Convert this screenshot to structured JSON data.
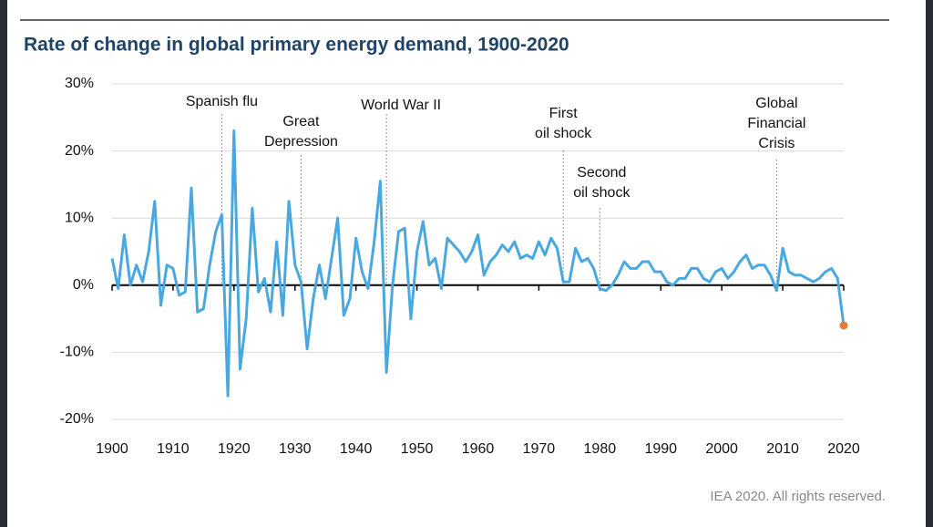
{
  "chart_data": {
    "type": "line",
    "title": "Rate of change in global primary energy demand, 1900-2020",
    "source": "IEA 2020. All rights reserved.",
    "x": [
      1900,
      1901,
      1902,
      1903,
      1904,
      1905,
      1906,
      1907,
      1908,
      1909,
      1910,
      1911,
      1912,
      1913,
      1914,
      1915,
      1916,
      1917,
      1918,
      1919,
      1920,
      1921,
      1922,
      1923,
      1924,
      1925,
      1926,
      1927,
      1928,
      1929,
      1930,
      1931,
      1932,
      1933,
      1934,
      1935,
      1936,
      1937,
      1938,
      1939,
      1940,
      1941,
      1942,
      1943,
      1944,
      1945,
      1946,
      1947,
      1948,
      1949,
      1950,
      1951,
      1952,
      1953,
      1954,
      1955,
      1956,
      1957,
      1958,
      1959,
      1960,
      1961,
      1962,
      1963,
      1964,
      1965,
      1966,
      1967,
      1968,
      1969,
      1970,
      1971,
      1972,
      1973,
      1974,
      1975,
      1976,
      1977,
      1978,
      1979,
      1980,
      1981,
      1982,
      1983,
      1984,
      1985,
      1986,
      1987,
      1988,
      1989,
      1990,
      1991,
      1992,
      1993,
      1994,
      1995,
      1996,
      1997,
      1998,
      1999,
      2000,
      2001,
      2002,
      2003,
      2004,
      2005,
      2006,
      2007,
      2008,
      2009,
      2010,
      2011,
      2012,
      2013,
      2014,
      2015,
      2016,
      2017,
      2018,
      2019,
      2020
    ],
    "series": [
      {
        "name": "Rate of change",
        "color": "#4aa8e0",
        "highlight_color": "#e07b39",
        "values": [
          4,
          -0.5,
          7.5,
          0,
          3,
          0.5,
          5,
          12.5,
          -3,
          3,
          2.5,
          -1.5,
          -1,
          14.5,
          -4,
          -3.5,
          3,
          8,
          10.5,
          -16.5,
          23,
          -12.5,
          -5,
          11.5,
          -1,
          1,
          -4,
          6.5,
          -4.5,
          12.5,
          3,
          0.5,
          -9.5,
          -2,
          3,
          -2,
          4,
          10,
          -4.5,
          -2,
          7,
          2,
          -0.5,
          6.5,
          15.5,
          -13,
          0,
          8,
          8.5,
          -5,
          5,
          9.5,
          3,
          4,
          -0.5,
          7,
          6,
          5,
          3.5,
          5,
          7.5,
          1.5,
          3.5,
          4.5,
          6,
          5,
          6.5,
          4,
          4.5,
          4,
          6.5,
          4.5,
          7,
          5.5,
          0.5,
          0.5,
          5.5,
          3.5,
          4,
          2.5,
          -0.5,
          -0.8,
          0,
          1.5,
          3.5,
          2.5,
          2.5,
          3.5,
          3.5,
          2,
          2,
          0.5,
          0,
          1,
          1,
          2.5,
          2.5,
          1,
          0.5,
          2,
          2.5,
          1,
          2,
          3.5,
          4.5,
          2.5,
          3,
          3,
          1.5,
          -0.8,
          5.5,
          2,
          1.5,
          1.5,
          1,
          0.5,
          1,
          2,
          2.5,
          1,
          -6
        ]
      }
    ],
    "annotations": [
      {
        "x": 1918,
        "lines": [
          "Spanish flu"
        ]
      },
      {
        "x": 1931,
        "lines": [
          "Great",
          "Depression"
        ]
      },
      {
        "x": 1945,
        "lines": [
          "World War II"
        ]
      },
      {
        "x": 1974,
        "lines": [
          "First",
          "oil shock"
        ]
      },
      {
        "x": 1980,
        "lines": [
          "Second",
          "oil shock"
        ]
      },
      {
        "x": 2009,
        "lines": [
          "Global",
          "Financial",
          "Crisis"
        ]
      }
    ],
    "xlim": [
      1900,
      2020
    ],
    "xticks": [
      1900,
      1910,
      1920,
      1930,
      1940,
      1950,
      1960,
      1970,
      1980,
      1990,
      2000,
      2010,
      2020
    ],
    "ylim": [
      -20,
      30
    ],
    "yticks": [
      {
        "value": -20,
        "label": "-20%"
      },
      {
        "value": -10,
        "label": "-10%"
      },
      {
        "value": 0,
        "label": "0%"
      },
      {
        "value": 10,
        "label": "10%"
      },
      {
        "value": 20,
        "label": "20%"
      },
      {
        "value": 30,
        "label": "30%"
      }
    ],
    "grid": true
  }
}
